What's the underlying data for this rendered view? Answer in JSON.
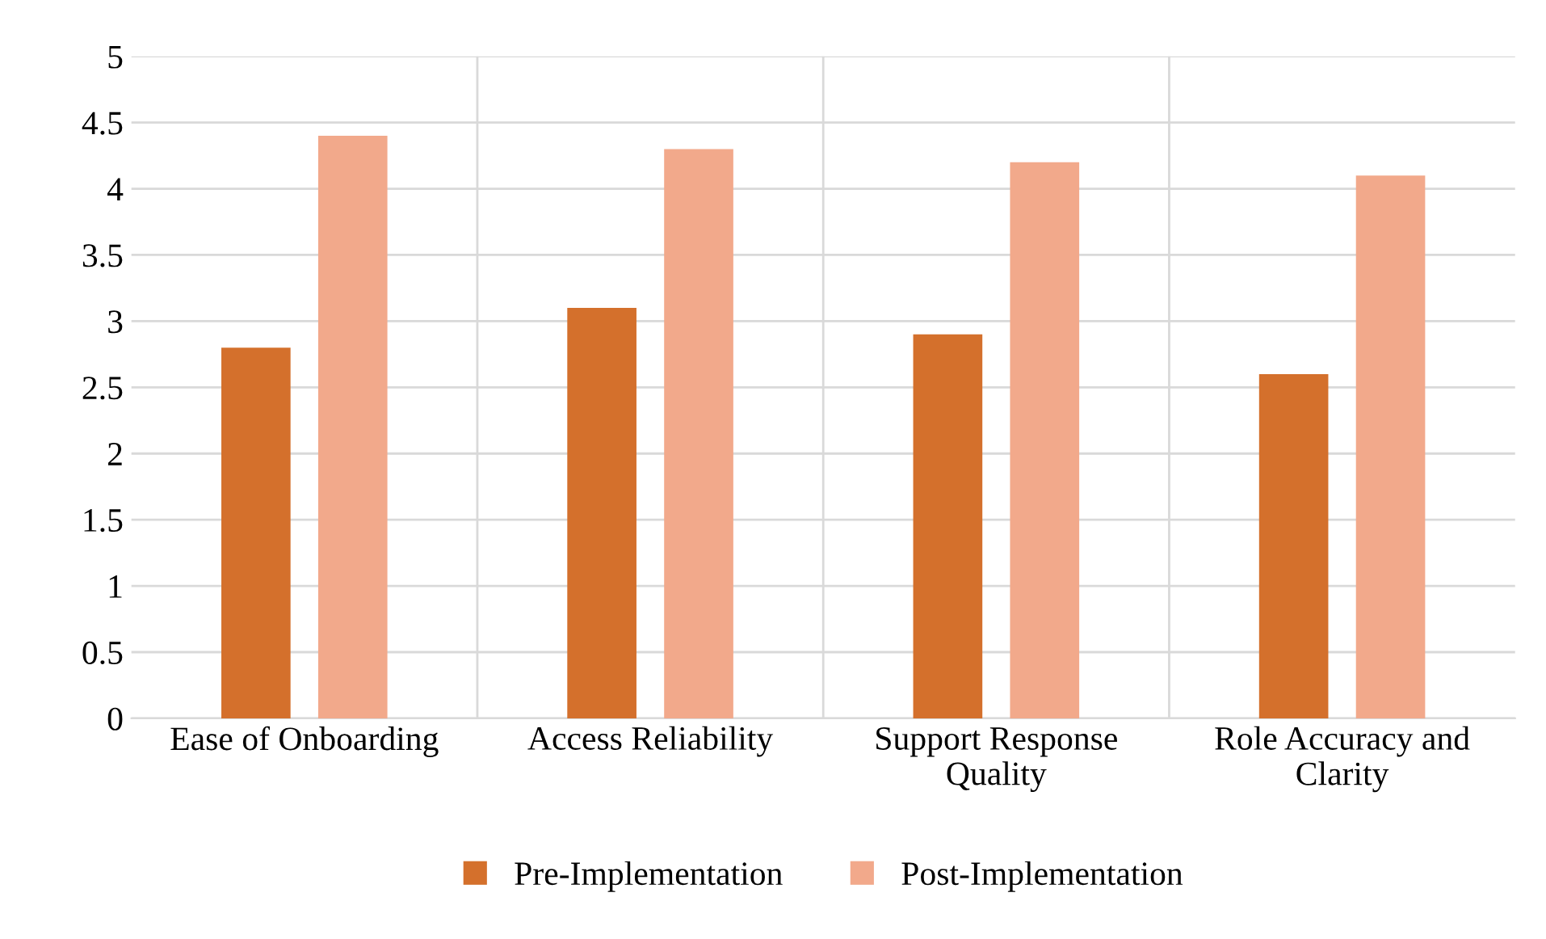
{
  "chart_data": {
    "type": "bar",
    "categories": [
      "Ease of Onboarding",
      "Access Reliability",
      "Support Response Quality",
      "Role Accuracy and Clarity"
    ],
    "series": [
      {
        "name": "Pre-Implementation",
        "color": "#d4702c",
        "values": [
          2.8,
          3.1,
          2.9,
          2.6
        ]
      },
      {
        "name": "Post-Implementation",
        "color": "#f2a98b",
        "values": [
          4.4,
          4.3,
          4.2,
          4.1
        ]
      }
    ],
    "ylim": [
      0,
      5
    ],
    "yticks": [
      0,
      0.5,
      1,
      1.5,
      2,
      2.5,
      3,
      3.5,
      4,
      4.5,
      5
    ],
    "grid": true,
    "legend": "bottom"
  }
}
